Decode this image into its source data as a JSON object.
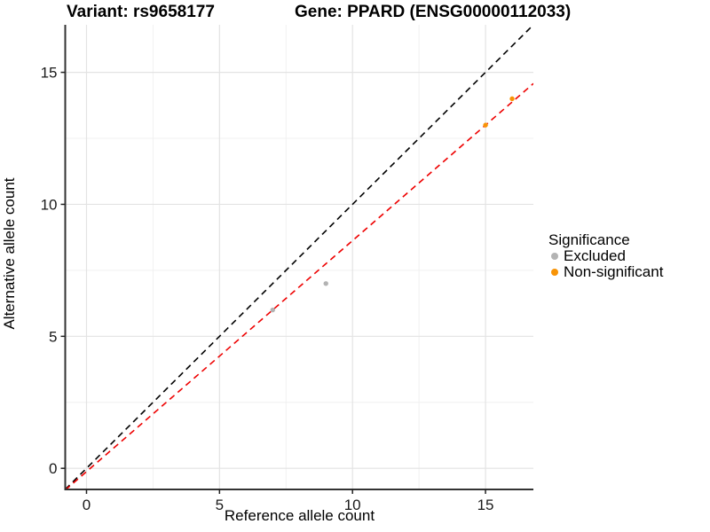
{
  "titles": {
    "left": "Variant: rs9658177",
    "right": "Gene: PPARD (ENSG00000112033)"
  },
  "chart_data": {
    "type": "scatter",
    "xlabel": "Reference allele count",
    "ylabel": "Alternative allele count",
    "xlim": [
      -0.8,
      16.8
    ],
    "ylim": [
      -0.8,
      16.8
    ],
    "x_ticks": [
      0,
      5,
      10,
      15
    ],
    "y_ticks": [
      0,
      5,
      10,
      15
    ],
    "x_minor_ticks": [
      2.5,
      7.5,
      12.5
    ],
    "y_minor_ticks": [
      2.5,
      7.5,
      12.5
    ],
    "grid": true,
    "series": [
      {
        "name": "Excluded",
        "color": "#B3B3B3",
        "points": [
          [
            7,
            6
          ],
          [
            9,
            7
          ]
        ]
      },
      {
        "name": "Non-significant",
        "color": "#F89406",
        "points": [
          [
            15,
            13
          ],
          [
            16,
            14
          ]
        ]
      }
    ],
    "lines": [
      {
        "name": "identity-line",
        "style": "dashed",
        "color": "#000000",
        "slope": 1,
        "intercept": 0
      },
      {
        "name": "fit-line",
        "style": "dashed",
        "color": "#EE0000",
        "slope": 0.875,
        "intercept": -0.125
      }
    ],
    "legend": {
      "title": "Significance",
      "position": "right",
      "entries": [
        {
          "label": "Excluded",
          "color": "#B3B3B3"
        },
        {
          "label": "Non-significant",
          "color": "#F89406"
        }
      ]
    },
    "colors": {
      "grid_major": "#E3E3E3",
      "grid_minor": "#F0F0F0",
      "axis_line": "#333333",
      "tick_label": "#1a1a1a"
    }
  }
}
